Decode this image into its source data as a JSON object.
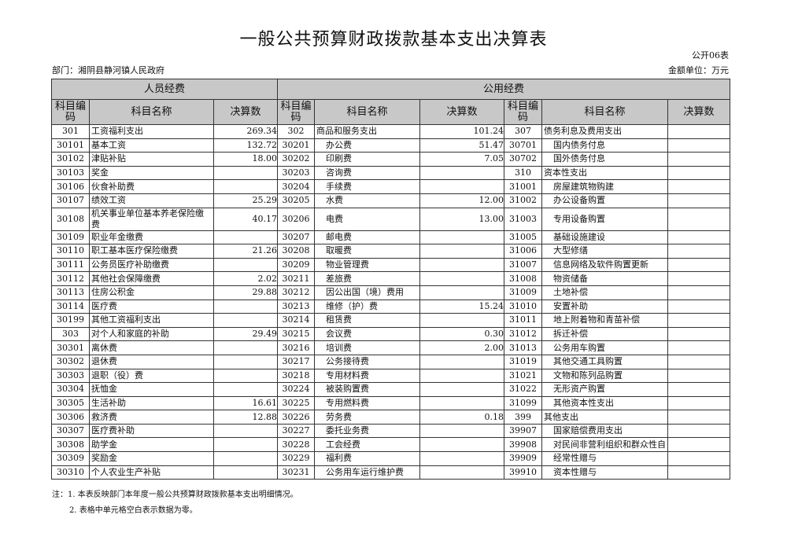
{
  "title": "一般公共预算财政拨款基本支出决算表",
  "form_no": "公开06表",
  "department": "部门：湘阴县静河镇人民政府",
  "unit": "金额单位：万元",
  "groups": {
    "personnel": "人员经费",
    "public": "公用经费"
  },
  "headers": {
    "code": "科目编码",
    "name": "科目名称",
    "amount": "决算数"
  },
  "rows": [
    [
      "301",
      "工资福利支出",
      "269.34",
      "302",
      "商品和服务支出",
      "101.24",
      "307",
      "债务利息及费用支出",
      ""
    ],
    [
      "30101",
      "基本工资",
      "132.72",
      "30201",
      "办公费",
      "51.47",
      "30701",
      "国内债务付息",
      ""
    ],
    [
      "30102",
      "津贴补贴",
      "18.00",
      "30202",
      "印刷费",
      "7.05",
      "30702",
      "国外债务付息",
      ""
    ],
    [
      "30103",
      "奖金",
      "",
      "30203",
      "咨询费",
      "",
      "310",
      "资本性支出",
      ""
    ],
    [
      "30106",
      "伙食补助费",
      "",
      "30204",
      "手续费",
      "",
      "31001",
      "房屋建筑物购建",
      ""
    ],
    [
      "30107",
      "绩效工资",
      "25.29",
      "30205",
      "水费",
      "12.00",
      "31002",
      "办公设备购置",
      ""
    ],
    [
      "30108",
      "机关事业单位基本养老保险缴费",
      "40.17",
      "30206",
      "电费",
      "13.00",
      "31003",
      "专用设备购置",
      ""
    ],
    [
      "30109",
      "职业年金缴费",
      "",
      "30207",
      "邮电费",
      "",
      "31005",
      "基础设施建设",
      ""
    ],
    [
      "30110",
      "职工基本医疗保险缴费",
      "21.26",
      "30208",
      "取暖费",
      "",
      "31006",
      "大型修缮",
      ""
    ],
    [
      "30111",
      "公务员医疗补助缴费",
      "",
      "30209",
      "物业管理费",
      "",
      "31007",
      "信息网络及软件购置更新",
      ""
    ],
    [
      "30112",
      "其他社会保障缴费",
      "2.02",
      "30211",
      "差旅费",
      "",
      "31008",
      "物资储备",
      ""
    ],
    [
      "30113",
      "住房公积金",
      "29.88",
      "30212",
      "因公出国（境）费用",
      "",
      "31009",
      "土地补偿",
      ""
    ],
    [
      "30114",
      "医疗费",
      "",
      "30213",
      "维修（护）费",
      "15.24",
      "31010",
      "安置补助",
      ""
    ],
    [
      "30199",
      "其他工资福利支出",
      "",
      "30214",
      "租赁费",
      "",
      "31011",
      "地上附着物和青苗补偿",
      ""
    ],
    [
      "303",
      "对个人和家庭的补助",
      "29.49",
      "30215",
      "会议费",
      "0.30",
      "31012",
      "拆迁补偿",
      ""
    ],
    [
      "30301",
      "离休费",
      "",
      "30216",
      "培训费",
      "2.00",
      "31013",
      "公务用车购置",
      ""
    ],
    [
      "30302",
      "退休费",
      "",
      "30217",
      "公务接待费",
      "",
      "31019",
      "其他交通工具购置",
      ""
    ],
    [
      "30303",
      "退职（役）费",
      "",
      "30218",
      "专用材料费",
      "",
      "31021",
      "文物和陈列品购置",
      ""
    ],
    [
      "30304",
      "抚恤金",
      "",
      "30224",
      "被装购置费",
      "",
      "31022",
      "无形资产购置",
      ""
    ],
    [
      "30305",
      "生活补助",
      "16.61",
      "30225",
      "专用燃料费",
      "",
      "31099",
      "其他资本性支出",
      ""
    ],
    [
      "30306",
      "救济费",
      "12.88",
      "30226",
      "劳务费",
      "0.18",
      "399",
      "其他支出",
      ""
    ],
    [
      "30307",
      "医疗费补助",
      "",
      "30227",
      "委托业务费",
      "",
      "39907",
      "国家赔偿费用支出",
      ""
    ],
    [
      "30308",
      "助学金",
      "",
      "30228",
      "工会经费",
      "",
      "39908",
      "对民间非营利组织和群众性自",
      ""
    ],
    [
      "30309",
      "奖励金",
      "",
      "30229",
      "福利费",
      "",
      "39909",
      "经常性赠与",
      ""
    ],
    [
      "30310",
      "个人农业生产补贴",
      "",
      "30231",
      "公务用车运行维护费",
      "",
      "39910",
      "资本性赠与",
      ""
    ]
  ],
  "notes": [
    "注：1. 本表反映部门本年度一般公共预算财政拨款基本支出明细情况。",
    "2. 表格中单元格空白表示数据为零。"
  ]
}
